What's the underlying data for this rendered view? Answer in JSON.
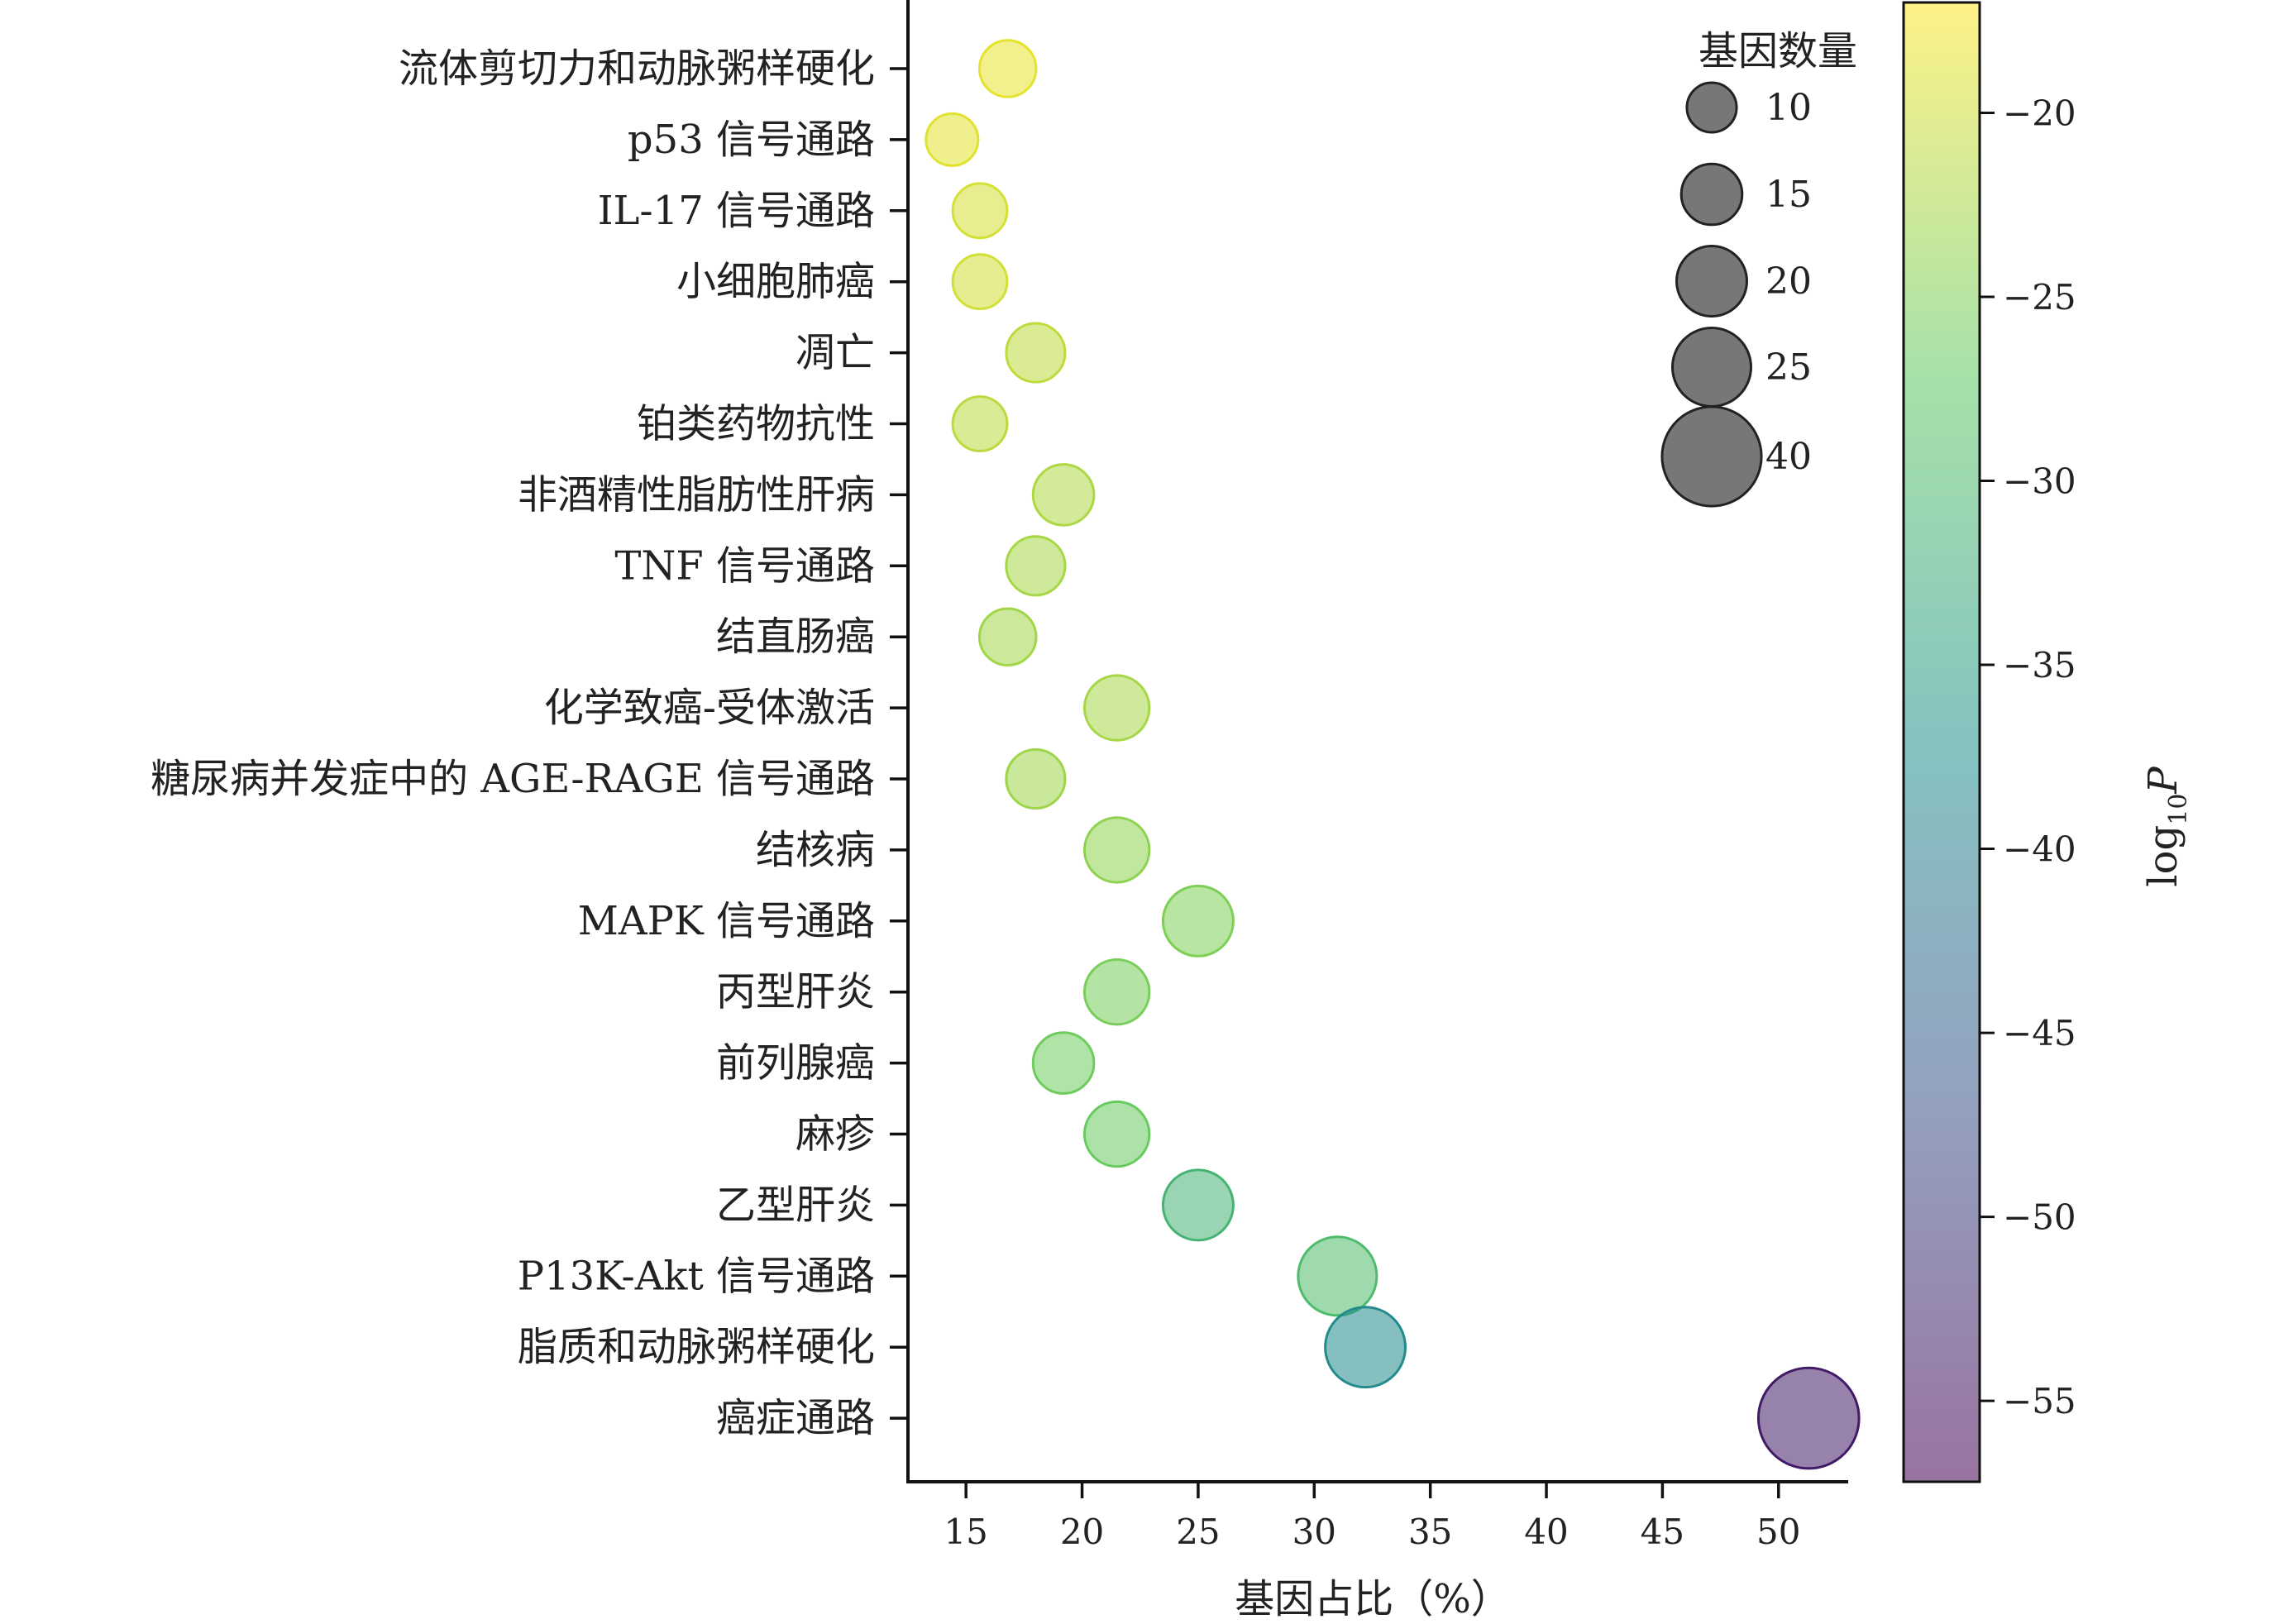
{
  "chart_data": {
    "type": "scatter",
    "xlabel": "基因占比（%）",
    "xlim": [
      12.5,
      53
    ],
    "xticks": [
      15,
      20,
      25,
      30,
      35,
      40,
      45,
      50
    ],
    "categories": [
      "流体剪切力和动脉粥样硬化",
      "p53 信号通路",
      "IL-17 信号通路",
      "小细胞肺癌",
      "凋亡",
      "铂类药物抗性",
      "非酒精性脂肪性肝病",
      "TNF 信号通路",
      "结直肠癌",
      "化学致癌-受体激活",
      "糖尿病并发症中的 AGE-RAGE 信号通路",
      "结核病",
      "MAPK 信号通路",
      "丙型肝炎",
      "前列腺癌",
      "麻疹",
      "乙型肝炎",
      "P13K-Akt 信号通路",
      "脂质和动脉粥样硬化",
      "癌症通路"
    ],
    "points": [
      {
        "category": "流体剪切力和动脉粥样硬化",
        "x": 16.8,
        "count": 13,
        "log10p": -18.5
      },
      {
        "category": "p53 信号通路",
        "x": 14.4,
        "count": 11,
        "log10p": -18.8
      },
      {
        "category": "IL-17 信号通路",
        "x": 15.6,
        "count": 12,
        "log10p": -19.5
      },
      {
        "category": "小细胞肺癌",
        "x": 15.6,
        "count": 12,
        "log10p": -19.8
      },
      {
        "category": "凋亡",
        "x": 18.0,
        "count": 14,
        "log10p": -21.0
      },
      {
        "category": "铂类药物抗性",
        "x": 15.6,
        "count": 12,
        "log10p": -21.2
      },
      {
        "category": "非酒精性脂肪性肝病",
        "x": 19.2,
        "count": 15,
        "log10p": -22.0
      },
      {
        "category": "TNF 信号通路",
        "x": 18.0,
        "count": 14,
        "log10p": -22.5
      },
      {
        "category": "结直肠癌",
        "x": 16.8,
        "count": 13,
        "log10p": -22.8
      },
      {
        "category": "化学致癌-受体激活",
        "x": 21.5,
        "count": 17,
        "log10p": -22.5
      },
      {
        "category": "糖尿病并发症中的 AGE-RAGE 信号通路",
        "x": 18.0,
        "count": 14,
        "log10p": -23.0
      },
      {
        "category": "结核病",
        "x": 21.5,
        "count": 17,
        "log10p": -24.0
      },
      {
        "category": "MAPK 信号通路",
        "x": 25.0,
        "count": 20,
        "log10p": -25.0
      },
      {
        "category": "丙型肝炎",
        "x": 21.5,
        "count": 17,
        "log10p": -25.5
      },
      {
        "category": "前列腺癌",
        "x": 19.2,
        "count": 15,
        "log10p": -26.0
      },
      {
        "category": "麻疹",
        "x": 21.5,
        "count": 17,
        "log10p": -26.5
      },
      {
        "category": "乙型肝炎",
        "x": 25.0,
        "count": 20,
        "log10p": -31.0
      },
      {
        "category": "P13K-Akt 信号通路",
        "x": 31.0,
        "count": 25,
        "log10p": -29.5
      },
      {
        "category": "脂质和动脉粥样硬化",
        "x": 32.2,
        "count": 26,
        "log10p": -38.0
      },
      {
        "category": "癌症通路",
        "x": 51.3,
        "count": 41,
        "log10p": -54.0
      }
    ],
    "size_legend": {
      "title": "基因数量",
      "values": [
        10,
        15,
        20,
        25,
        40
      ],
      "color": "#555555"
    },
    "colorbar": {
      "label_main": "log",
      "label_sub": "10",
      "label_var": "P",
      "range": [
        -57.2,
        -17.0
      ],
      "ticks": [
        -20,
        -25,
        -30,
        -35,
        -40,
        -45,
        -50,
        -55
      ],
      "colormap": [
        "#440154",
        "#3b528b",
        "#21918c",
        "#5ec962",
        "#fde725"
      ],
      "alpha": 0.55
    }
  }
}
